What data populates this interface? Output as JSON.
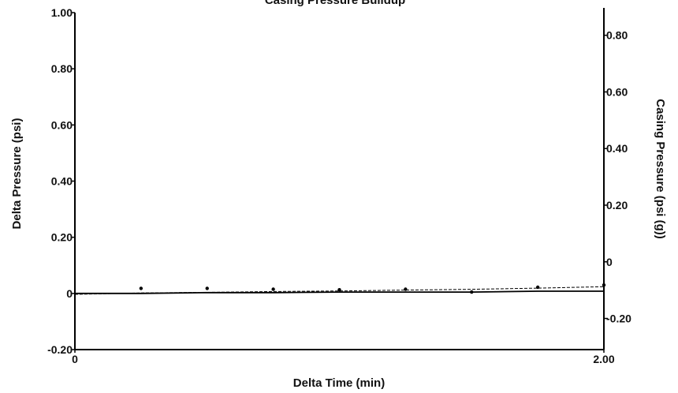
{
  "chart_data": {
    "type": "line",
    "title": "Casing Pressure Buildup",
    "xlabel": "Delta Time (min)",
    "ylabel_left": "Delta Pressure (psi)",
    "ylabel_right": "Casing Pressure (psi (g))",
    "xlim": [
      0,
      2.0
    ],
    "ylim_left": [
      -0.2,
      1.0
    ],
    "ylim_right": [
      -0.31,
      0.88
    ],
    "x_ticks": [
      0,
      2.0
    ],
    "x_tick_labels": [
      "0",
      "2.00"
    ],
    "y_left_ticks": [
      -0.2,
      0,
      0.2,
      0.4,
      0.6,
      0.8,
      1.0
    ],
    "y_left_tick_labels": [
      "-0.20",
      "0",
      "0.20",
      "0.40",
      "0.60",
      "0.80",
      "1.00"
    ],
    "y_right_ticks": [
      -0.2,
      0,
      0.2,
      0.4,
      0.6,
      0.8
    ],
    "y_right_tick_labels": [
      "-0.20",
      "0",
      "0.20",
      "0.40",
      "0.60",
      "0.80"
    ],
    "grid": false,
    "series": [
      {
        "axis": "left",
        "style": "solid",
        "x": [
          0,
          0.25,
          0.5,
          0.75,
          1.0,
          1.25,
          1.5,
          1.75,
          2.0
        ],
        "values": [
          0.0,
          0.0,
          0.003,
          0.003,
          0.005,
          0.005,
          0.005,
          0.008,
          0.008
        ]
      },
      {
        "axis": "right",
        "style": "dashed",
        "x": [
          0,
          0.25,
          0.5,
          0.75,
          1.0,
          1.25,
          1.5,
          1.75,
          2.0
        ],
        "values": [
          -0.115,
          -0.11,
          -0.108,
          -0.105,
          -0.103,
          -0.1,
          -0.097,
          -0.093,
          -0.088
        ]
      },
      {
        "axis": "left",
        "style": "markers",
        "x": [
          0.25,
          0.5,
          0.75,
          1.0,
          1.25,
          1.5,
          1.75,
          2.0
        ],
        "values": [
          0.018,
          0.018,
          0.015,
          0.013,
          0.015,
          0.005,
          0.022,
          0.03
        ]
      }
    ],
    "colors": {
      "axis": "#000000",
      "series": "#000000"
    }
  }
}
